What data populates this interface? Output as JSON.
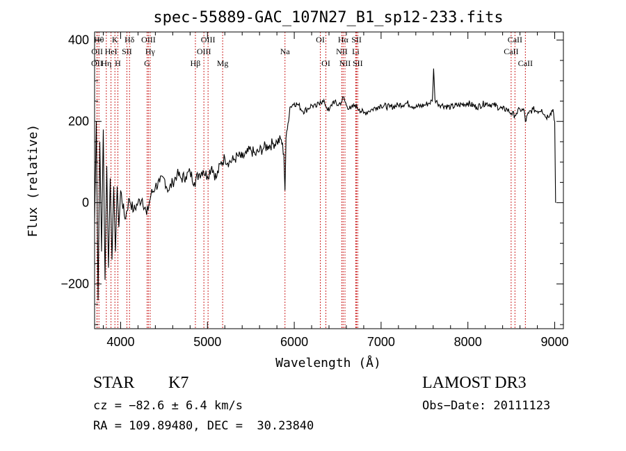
{
  "chart_data": {
    "type": "line",
    "title": "spec-55889-GAC_107N27_B1_sp12-233.fits",
    "xlabel": "Wavelength (Å)",
    "ylabel": "Flux (relative)",
    "xlim": [
      3700,
      9100
    ],
    "ylim": [
      -310,
      420
    ],
    "x_ticks": [
      4000,
      5000,
      6000,
      7000,
      8000,
      9000
    ],
    "x_tick_labels": [
      "4000",
      "5000",
      "6000",
      "7000",
      "8000",
      "9000"
    ],
    "y_ticks": [
      -200,
      0,
      200,
      400
    ],
    "y_tick_labels": [
      "−200",
      "0",
      "200",
      "400"
    ],
    "line_color": "#000000",
    "marker_color": "#cc2222",
    "series": [
      {
        "name": "flux",
        "x": [
          3700,
          3720,
          3740,
          3760,
          3780,
          3800,
          3820,
          3840,
          3860,
          3880,
          3900,
          3920,
          3940,
          3960,
          3980,
          4000,
          4050,
          4100,
          4150,
          4200,
          4250,
          4300,
          4350,
          4400,
          4450,
          4500,
          4550,
          4600,
          4650,
          4700,
          4750,
          4800,
          4850,
          4900,
          4950,
          5000,
          5050,
          5100,
          5150,
          5200,
          5250,
          5300,
          5350,
          5400,
          5450,
          5500,
          5550,
          5600,
          5650,
          5700,
          5750,
          5800,
          5850,
          5880,
          5893,
          5905,
          5920,
          5950,
          6000,
          6050,
          6100,
          6150,
          6200,
          6250,
          6300,
          6350,
          6400,
          6450,
          6500,
          6550,
          6563,
          6600,
          6650,
          6700,
          6750,
          6800,
          6850,
          6900,
          6950,
          7000,
          7100,
          7200,
          7300,
          7400,
          7500,
          7550,
          7590,
          7605,
          7620,
          7650,
          7700,
          7800,
          7900,
          8000,
          8100,
          8200,
          8300,
          8400,
          8450,
          8500,
          8542,
          8560,
          8600,
          8650,
          8662,
          8700,
          8750,
          8800,
          8850,
          8900,
          8950,
          8980,
          9000,
          9010
        ],
        "y": [
          -50,
          200,
          -240,
          150,
          -120,
          180,
          -190,
          90,
          -160,
          60,
          -140,
          40,
          -120,
          40,
          -60,
          30,
          -40,
          10,
          -20,
          0,
          10,
          -30,
          20,
          40,
          50,
          60,
          30,
          50,
          70,
          60,
          65,
          75,
          50,
          70,
          80,
          65,
          90,
          60,
          95,
          110,
          100,
          105,
          115,
          110,
          120,
          130,
          118,
          128,
          135,
          140,
          145,
          150,
          155,
          120,
          30,
          160,
          180,
          235,
          245,
          240,
          225,
          230,
          240,
          235,
          250,
          245,
          225,
          250,
          240,
          250,
          260,
          240,
          230,
          240,
          230,
          220,
          225,
          230,
          235,
          240,
          235,
          240,
          245,
          235,
          240,
          245,
          250,
          330,
          255,
          245,
          240,
          235,
          240,
          245,
          235,
          245,
          240,
          230,
          230,
          220,
          215,
          220,
          230,
          225,
          200,
          220,
          230,
          225,
          230,
          210,
          220,
          230,
          200,
          0
        ]
      }
    ],
    "line_markers": [
      {
        "name": "OII",
        "x": 3727,
        "row": 2
      },
      {
        "name": "Hθ",
        "x": 3750,
        "row": 0
      },
      {
        "name": "Hη",
        "x": 3835,
        "row": 2
      },
      {
        "name": "OII",
        "x": 3729,
        "row": 1
      },
      {
        "name": "HeI",
        "x": 3889,
        "row": 1
      },
      {
        "name": "K",
        "x": 3934,
        "row": 0
      },
      {
        "name": "H",
        "x": 3968,
        "row": 2
      },
      {
        "name": "SII",
        "x": 4072,
        "row": 1
      },
      {
        "name": "Hδ",
        "x": 4102,
        "row": 0
      },
      {
        "name": "G",
        "x": 4305,
        "row": 2
      },
      {
        "name": "OIII",
        "x": 4320,
        "row": 0
      },
      {
        "name": "Hγ",
        "x": 4340,
        "row": 1
      },
      {
        "name": "Hβ",
        "x": 4861,
        "row": 2
      },
      {
        "name": "OIII",
        "x": 4959,
        "row": 1
      },
      {
        "name": "OIII",
        "x": 5007,
        "row": 0
      },
      {
        "name": "Mg",
        "x": 5175,
        "row": 2
      },
      {
        "name": "Na",
        "x": 5893,
        "row": 1
      },
      {
        "name": "OI",
        "x": 6300,
        "row": 0
      },
      {
        "name": "OI",
        "x": 6364,
        "row": 2
      },
      {
        "name": "NII",
        "x": 6548,
        "row": 1
      },
      {
        "name": "Hα",
        "x": 6563,
        "row": 0
      },
      {
        "name": "NII",
        "x": 6584,
        "row": 2
      },
      {
        "name": "Li",
        "x": 6708,
        "row": 1
      },
      {
        "name": "SII",
        "x": 6717,
        "row": 0
      },
      {
        "name": "SII",
        "x": 6731,
        "row": 2
      },
      {
        "name": "CaII",
        "x": 8498,
        "row": 1
      },
      {
        "name": "CaII",
        "x": 8542,
        "row": 0
      },
      {
        "name": "CaII",
        "x": 8662,
        "row": 2
      }
    ]
  },
  "info": {
    "object_class": "STAR",
    "subclass": "K7",
    "survey": "LAMOST DR3",
    "redshift_text": "cz = −82.6 ± 6.4 km/s",
    "obs_date": "Obs−Date: 20111123",
    "coords": "RA = 109.89480, DEC =  30.23840"
  }
}
